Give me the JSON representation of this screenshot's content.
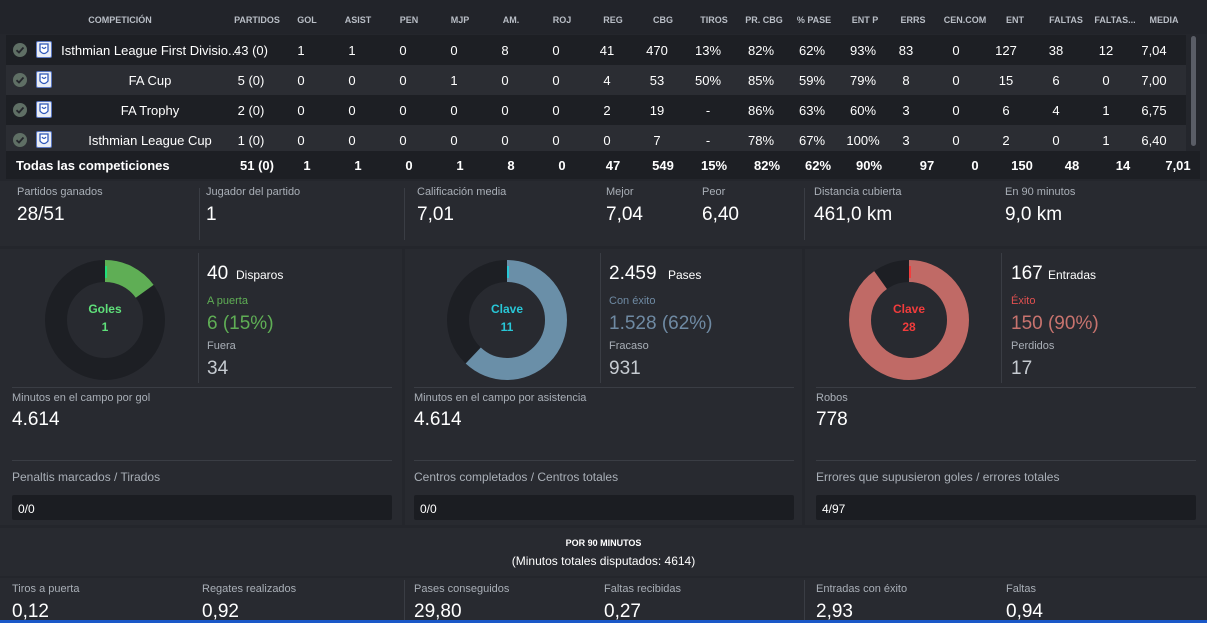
{
  "columns": [
    "COMPETICIÓN",
    "PARTIDOS",
    "GOL",
    "ASIST",
    "PEN",
    "MJP",
    "AM.",
    "ROJ",
    "REG",
    "CBG",
    "TIROS",
    "PR. CBG",
    "% PASE",
    "ENT P",
    "ERRS",
    "CEN.COM",
    "ENT",
    "FALTAS",
    "FALTAS...",
    "MEDIA"
  ],
  "rows": [
    {
      "competition": "Isthmian League First Divisio...",
      "values": [
        "43 (0)",
        "1",
        "1",
        "0",
        "0",
        "8",
        "0",
        "41",
        "470",
        "13%",
        "82%",
        "62%",
        "93%",
        "83",
        "0",
        "127",
        "38",
        "12",
        "7,04"
      ]
    },
    {
      "competition": "FA Cup",
      "values": [
        "5 (0)",
        "0",
        "0",
        "0",
        "1",
        "0",
        "0",
        "4",
        "53",
        "50%",
        "85%",
        "59%",
        "79%",
        "8",
        "0",
        "15",
        "6",
        "0",
        "7,00"
      ]
    },
    {
      "competition": "FA Trophy",
      "values": [
        "2 (0)",
        "0",
        "0",
        "0",
        "0",
        "0",
        "0",
        "2",
        "19",
        "-",
        "86%",
        "63%",
        "60%",
        "3",
        "0",
        "6",
        "4",
        "1",
        "6,75"
      ]
    },
    {
      "competition": "Isthmian League Cup",
      "values": [
        "1 (0)",
        "0",
        "0",
        "0",
        "0",
        "0",
        "0",
        "0",
        "7",
        "-",
        "78%",
        "67%",
        "100%",
        "3",
        "0",
        "2",
        "0",
        "1",
        "6,40"
      ]
    }
  ],
  "totals": {
    "label": "Todas las competiciones",
    "values": [
      "51 (0)",
      "1",
      "1",
      "0",
      "1",
      "8",
      "0",
      "47",
      "549",
      "15%",
      "82%",
      "62%",
      "90%",
      "97",
      "0",
      "150",
      "48",
      "14",
      "7,01"
    ]
  },
  "summary": {
    "won_label": "Partidos ganados",
    "won": "28/51",
    "pom_label": "Jugador del partido",
    "pom": "1",
    "avg_label": "Calificación media",
    "avg": "7,01",
    "best_label": "Mejor",
    "best": "7,04",
    "worst_label": "Peor",
    "worst": "6,40",
    "dist_label": "Distancia cubierta",
    "dist": "461,0 km",
    "per90_label": "En 90 minutos",
    "per90": "9,0 km"
  },
  "attack": {
    "donut_label": "Goles",
    "donut_value": "1",
    "fraction": 0.15,
    "color": "#5fae55",
    "marker": "#21e07a",
    "head_num": "40",
    "head_txt": "Disparos",
    "ok_label": "A puerta",
    "ok_value": "6 (15%)",
    "bad_label": "Fuera",
    "bad_value": "34",
    "mins_label": "Minutos en el campo por gol",
    "mins_value": "4.614",
    "box_label": "Penaltis marcados / Tirados",
    "box_value": "0/0"
  },
  "passing": {
    "donut_label": "Clave",
    "donut_value": "11",
    "fraction": 0.62,
    "color": "#6a8fa8",
    "marker": "#28c7d7",
    "head_num": "2.459",
    "head_txt": "Pases",
    "ok_label": "Con éxito",
    "ok_value": "1.528 (62%)",
    "bad_label": "Fracaso",
    "bad_value": "931",
    "mins_label": "Minutos en el campo por asistencia",
    "mins_value": "4.614",
    "box_label": "Centros completados / Centros totales",
    "box_value": "0/0"
  },
  "defence": {
    "donut_label": "Clave",
    "donut_value": "28",
    "fraction": 0.9,
    "color": "#c06a66",
    "marker": "#f23c3c",
    "head_num": "167",
    "head_txt": "Entradas",
    "ok_label": "Éxito",
    "ok_value": "150 (90%)",
    "bad_label": "Perdidos",
    "bad_value": "17",
    "mins_label": "Robos",
    "mins_value": "778",
    "box_label": "Errores que supusieron goles / errores totales",
    "box_value": "4/97"
  },
  "per90": {
    "title": "POR 90 MINUTOS",
    "subtitle": "(Minutos totales disputados: 4614)",
    "items": [
      {
        "label": "Tiros a puerta",
        "value": "0,12"
      },
      {
        "label": "Regates realizados",
        "value": "0,92"
      },
      {
        "label": "Pases conseguidos",
        "value": "29,80"
      },
      {
        "label": "Faltas recibidas",
        "value": "0,27"
      },
      {
        "label": "Entradas con éxito",
        "value": "2,93"
      },
      {
        "label": "Faltas",
        "value": "0,94"
      }
    ]
  },
  "colors": {
    "attack_ok": "#5fae55",
    "passing_ok": "#6f8aa3",
    "defence_ok": "#e05050",
    "donut_track": "#1d1f24"
  }
}
